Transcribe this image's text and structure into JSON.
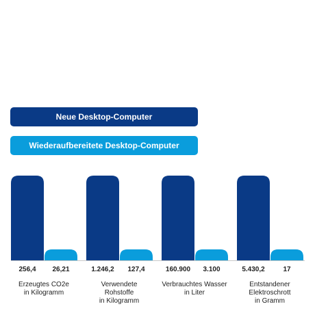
{
  "colors": {
    "new": "#0a3a86",
    "refurb": "#0a9ddc",
    "axis": "#c8c8c8"
  },
  "legend": {
    "new": "Neue Desktop-Computer",
    "refurb": "Wiederaufbereitete Desktop-Computer"
  },
  "chart_data": {
    "type": "bar",
    "categories": [
      [
        "Erzeugtes CO2e",
        "in Kilogramm"
      ],
      [
        "Verwendete",
        "Rohstoffe",
        "in Kilogramm"
      ],
      [
        "Verbrauchtes Wasser",
        "in Liter"
      ],
      [
        "Entstandener",
        "Elektroschrott",
        "in Gramm"
      ]
    ],
    "series": [
      {
        "name": "Neue Desktop-Computer",
        "values": [
          256.4,
          1246.2,
          160900,
          5430.2
        ],
        "labels": [
          "256,4",
          "1.246,2",
          "160.900",
          "5.430,2"
        ]
      },
      {
        "name": "Wiederaufbereitete Desktop-Computer",
        "values": [
          26.21,
          127.4,
          3100,
          17
        ],
        "labels": [
          "26,21",
          "127,4",
          "3.100",
          "17"
        ]
      }
    ],
    "grid": false
  }
}
